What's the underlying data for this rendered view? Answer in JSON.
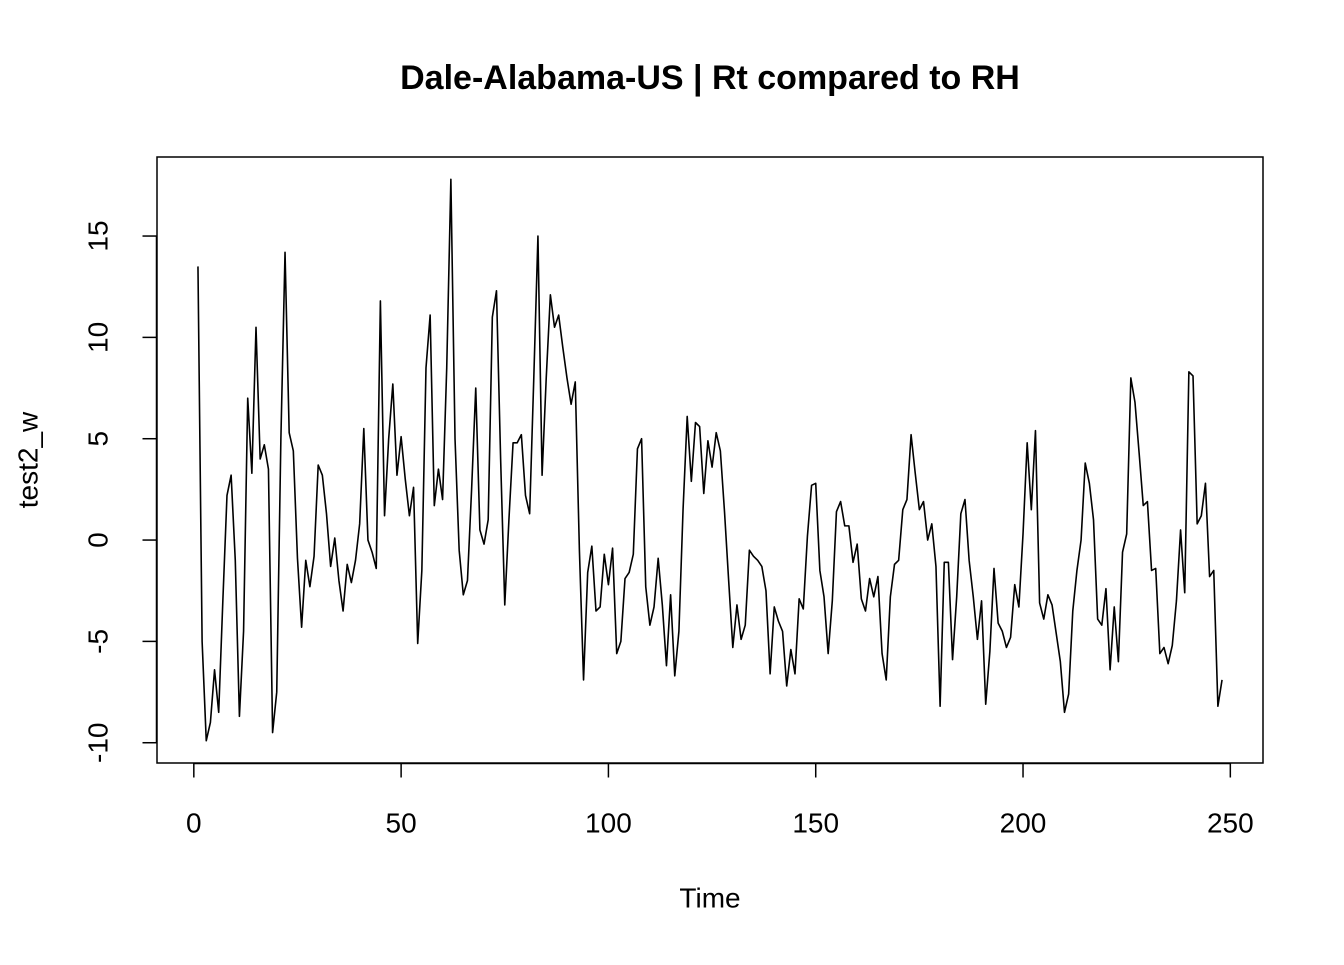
{
  "chart_data": {
    "type": "line",
    "title": "Dale-Alabama-US | Rt compared to RH",
    "xlabel": "Time",
    "ylabel": "test2_w",
    "x": [
      1,
      2,
      3,
      4,
      5,
      6,
      7,
      8,
      9,
      10,
      11,
      12,
      13,
      14,
      15,
      16,
      17,
      18,
      19,
      20,
      21,
      22,
      23,
      24,
      25,
      26,
      27,
      28,
      29,
      30,
      31,
      32,
      33,
      34,
      35,
      36,
      37,
      38,
      39,
      40,
      41,
      42,
      43,
      44,
      45,
      46,
      47,
      48,
      49,
      50,
      51,
      52,
      53,
      54,
      55,
      56,
      57,
      58,
      59,
      60,
      61,
      62,
      63,
      64,
      65,
      66,
      67,
      68,
      69,
      70,
      71,
      72,
      73,
      74,
      75,
      76,
      77,
      78,
      79,
      80,
      81,
      82,
      83,
      84,
      85,
      86,
      87,
      88,
      89,
      90,
      91,
      92,
      93,
      94,
      95,
      96,
      97,
      98,
      99,
      100,
      101,
      102,
      103,
      104,
      105,
      106,
      107,
      108,
      109,
      110,
      111,
      112,
      113,
      114,
      115,
      116,
      117,
      118,
      119,
      120,
      121,
      122,
      123,
      124,
      125,
      126,
      127,
      128,
      129,
      130,
      131,
      132,
      133,
      134,
      135,
      136,
      137,
      138,
      139,
      140,
      141,
      142,
      143,
      144,
      145,
      146,
      147,
      148,
      149,
      150,
      151,
      152,
      153,
      154,
      155,
      156,
      157,
      158,
      159,
      160,
      161,
      162,
      163,
      164,
      165,
      166,
      167,
      168,
      169,
      170,
      171,
      172,
      173,
      174,
      175,
      176,
      177,
      178,
      179,
      180,
      181,
      182,
      183,
      184,
      185,
      186,
      187,
      188,
      189,
      190,
      191,
      192,
      193,
      194,
      195,
      196,
      197,
      198,
      199,
      200,
      201,
      202,
      203,
      204,
      205,
      206,
      207,
      208,
      209,
      210,
      211,
      212,
      213,
      214,
      215,
      216,
      217,
      218,
      219,
      220,
      221,
      222,
      223,
      224,
      225,
      226,
      227,
      228,
      229,
      230,
      231,
      232,
      233,
      234,
      235,
      236,
      237,
      238,
      239,
      240,
      241,
      242,
      243,
      244,
      245,
      246,
      247,
      248
    ],
    "series": [
      {
        "name": "test2_w",
        "color": "#000000",
        "values": [
          13.5,
          -5,
          -9.9,
          -9.0,
          -6.4,
          -8.5,
          -3,
          2.2,
          3.2,
          -1,
          -8.7,
          -4.5,
          7.0,
          3.3,
          10.5,
          4.0,
          4.7,
          3.5,
          -9.5,
          -7.5,
          5,
          14.2,
          5.3,
          4.4,
          -0.9,
          -4.3,
          -1.0,
          -2.3,
          -0.8,
          3.7,
          3.2,
          1.3,
          -1.3,
          0.1,
          -2.0,
          -3.5,
          -1.2,
          -2.1,
          -1.0,
          0.8,
          5.5,
          0.0,
          -0.6,
          -1.4,
          11.8,
          1.2,
          5.0,
          7.7,
          3.2,
          5.1,
          3.0,
          1.2,
          2.6,
          -5.1,
          -1.5,
          8.5,
          11.1,
          1.7,
          3.5,
          2.0,
          8.5,
          17.8,
          5,
          -0.5,
          -2.7,
          -2.0,
          2.5,
          7.5,
          0.5,
          -0.2,
          1.0,
          11.0,
          12.3,
          4.0,
          -3.2,
          1.0,
          4.8,
          4.8,
          5.2,
          2.2,
          1.3,
          8,
          15.0,
          3.2,
          8,
          12.1,
          10.5,
          11.1,
          9.5,
          8.0,
          6.7,
          7.8,
          -0.5,
          -6.9,
          -1.6,
          -0.3,
          -3.5,
          -3.3,
          -0.7,
          -2.2,
          -0.4,
          -5.6,
          -5.0,
          -1.9,
          -1.6,
          -0.7,
          4.5,
          5.0,
          -2.3,
          -4.2,
          -3.3,
          -0.9,
          -3.2,
          -6.2,
          -2.7,
          -6.7,
          -4.5,
          1.5,
          6.1,
          2.9,
          5.8,
          5.6,
          2.3,
          4.9,
          3.6,
          5.3,
          4.4,
          1.4,
          -2,
          -5.3,
          -3.2,
          -4.9,
          -4.2,
          -0.5,
          -0.8,
          -1.0,
          -1.3,
          -2.5,
          -6.6,
          -3.3,
          -4.0,
          -4.5,
          -7.2,
          -5.4,
          -6.6,
          -2.9,
          -3.4,
          0.2,
          2.7,
          2.8,
          -1.5,
          -2.8,
          -5.6,
          -3.0,
          1.4,
          1.9,
          0.7,
          0.7,
          -1.1,
          -0.2,
          -2.9,
          -3.5,
          -1.9,
          -2.8,
          -1.8,
          -5.6,
          -6.9,
          -2.8,
          -1.2,
          -1.0,
          1.5,
          2.0,
          5.2,
          3.3,
          1.5,
          1.9,
          0.0,
          0.8,
          -1.3,
          -8.2,
          -1.1,
          -1.1,
          -5.9,
          -2.8,
          1.3,
          2.0,
          -1.0,
          -2.8,
          -4.9,
          -3.0,
          -8.1,
          -5.5,
          -1.4,
          -4.1,
          -4.5,
          -5.3,
          -4.8,
          -2.2,
          -3.3,
          0.3,
          4.8,
          1.5,
          5.4,
          -3.1,
          -3.9,
          -2.7,
          -3.2,
          -4.6,
          -6.0,
          -8.5,
          -7.6,
          -3.5,
          -1.5,
          0,
          3.8,
          2.8,
          1.0,
          -3.9,
          -4.2,
          -2.4,
          -6.4,
          -3.3,
          -6.0,
          -0.6,
          0.3,
          8.0,
          6.8,
          4.3,
          1.7,
          1.9,
          -1.5,
          -1.4,
          -5.6,
          -5.3,
          -6.1,
          -5.2,
          -3,
          0.5,
          -2.6,
          8.3,
          8.1,
          0.8,
          1.2,
          2.8,
          -1.8,
          -1.5,
          -8.2,
          -6.9
        ]
      }
    ],
    "xlim": [
      -8.88,
      257.88
    ],
    "ylim": [
      -11.0,
      18.9
    ],
    "xticks": [
      0,
      50,
      100,
      150,
      200,
      250
    ],
    "yticks": [
      -10,
      -5,
      0,
      5,
      10,
      15
    ]
  }
}
